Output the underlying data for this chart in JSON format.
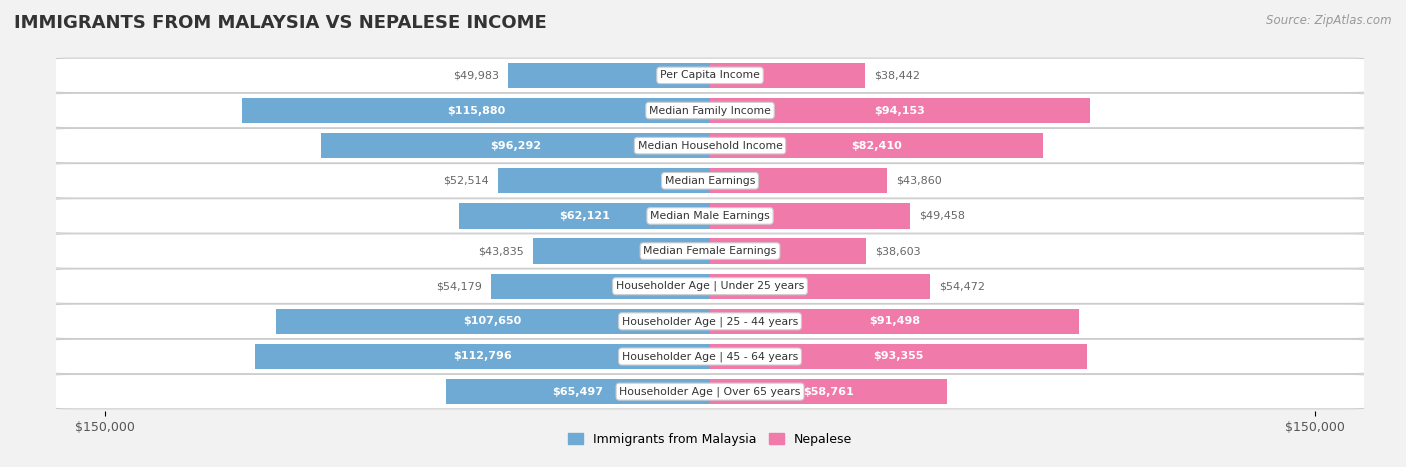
{
  "title": "IMMIGRANTS FROM MALAYSIA VS NEPALESE INCOME",
  "source": "Source: ZipAtlas.com",
  "categories": [
    "Per Capita Income",
    "Median Family Income",
    "Median Household Income",
    "Median Earnings",
    "Median Male Earnings",
    "Median Female Earnings",
    "Householder Age | Under 25 years",
    "Householder Age | 25 - 44 years",
    "Householder Age | 45 - 64 years",
    "Householder Age | Over 65 years"
  ],
  "malaysia_values": [
    49983,
    115880,
    96292,
    52514,
    62121,
    43835,
    54179,
    107650,
    112796,
    65497
  ],
  "nepalese_values": [
    38442,
    94153,
    82410,
    43860,
    49458,
    38603,
    54472,
    91498,
    93355,
    58761
  ],
  "malaysia_labels": [
    "$49,983",
    "$115,880",
    "$96,292",
    "$52,514",
    "$62,121",
    "$43,835",
    "$54,179",
    "$107,650",
    "$112,796",
    "$65,497"
  ],
  "nepalese_labels": [
    "$38,442",
    "$94,153",
    "$82,410",
    "$43,860",
    "$49,458",
    "$38,603",
    "$54,472",
    "$91,498",
    "$93,355",
    "$58,761"
  ],
  "malaysia_color_light": "#c5d9ef",
  "malaysia_color_main": "#6eaad4",
  "nepalese_color_light": "#f9c4d2",
  "nepalese_color_main": "#f07aaa",
  "max_value": 150000,
  "bar_height": 0.72,
  "background_color": "#f2f2f2",
  "row_bg_color": "#ffffff",
  "inside_label_threshold": 55000,
  "legend_malaysia": "Immigrants from Malaysia",
  "legend_nepalese": "Nepalese"
}
